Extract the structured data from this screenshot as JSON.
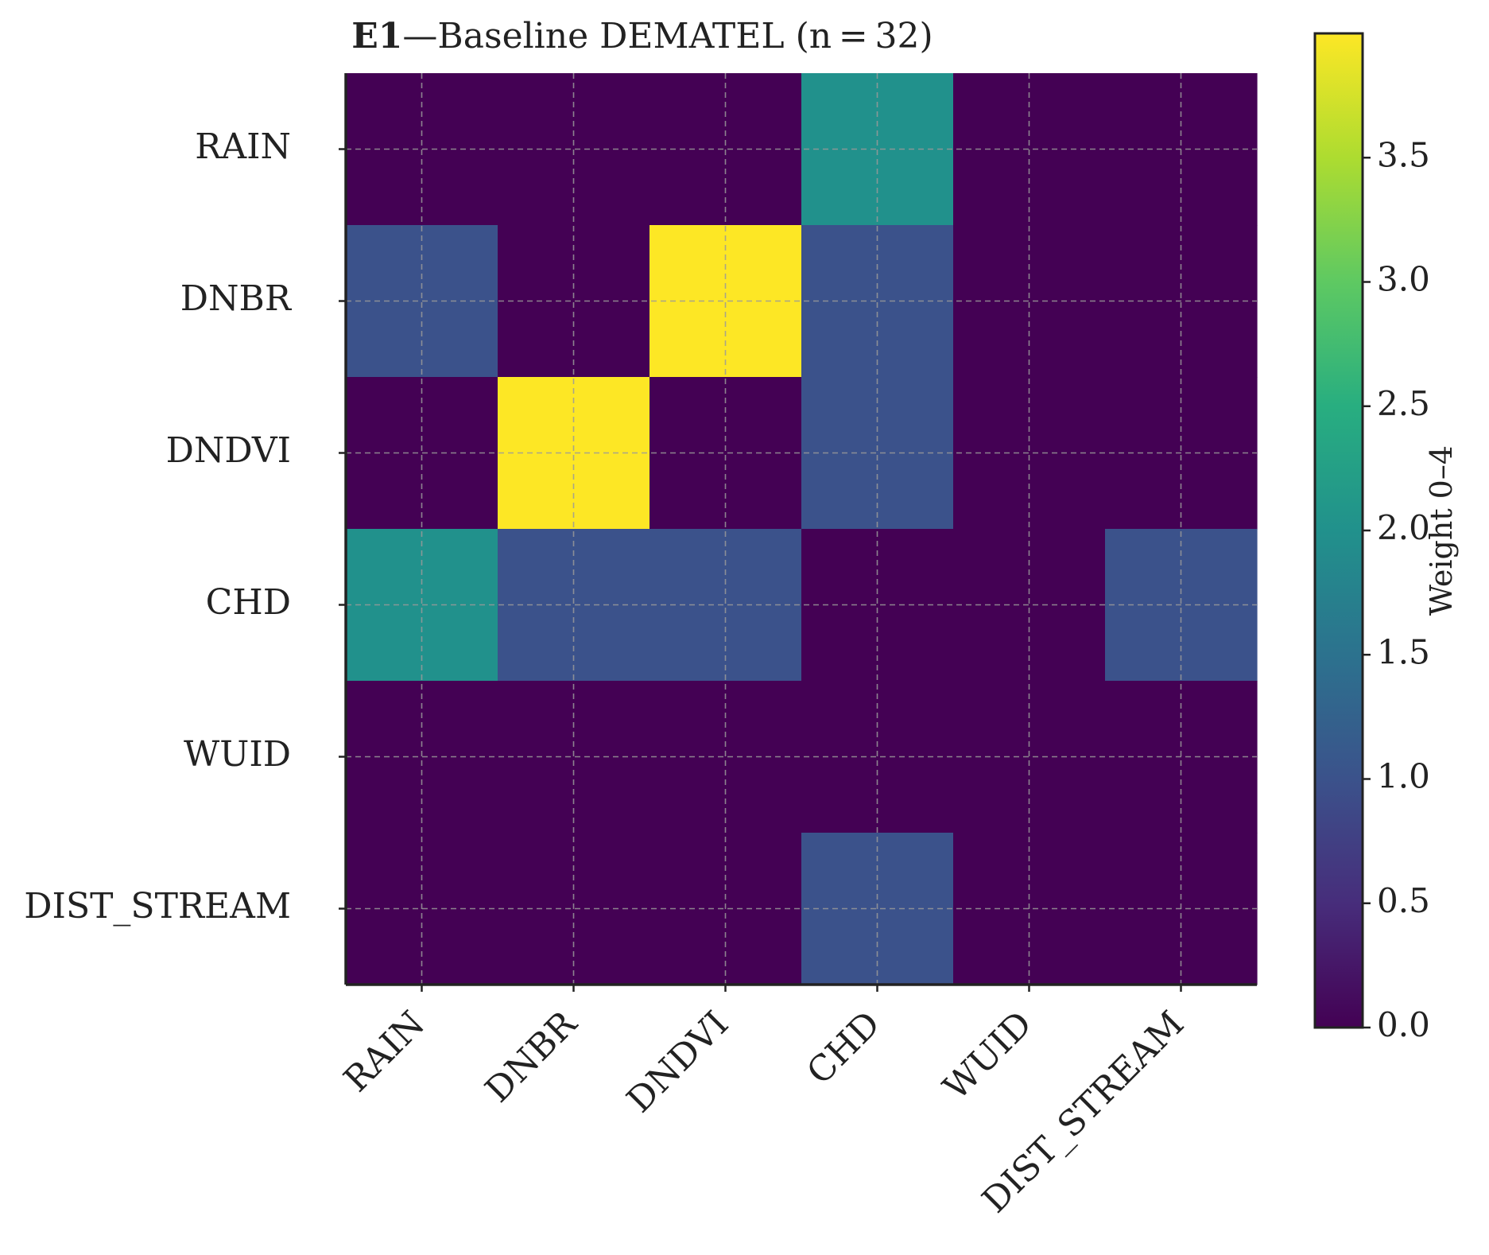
{
  "chart_data": {
    "type": "heatmap",
    "title_bold": "E1",
    "title_rest": "—Baseline DEMATEL (n = 32)",
    "rows": [
      "RAIN",
      "DNBR",
      "DNDVI",
      "CHD",
      "WUID",
      "DIST_STREAM"
    ],
    "cols": [
      "RAIN",
      "DNBR",
      "DNDVI",
      "CHD",
      "WUID",
      "DIST_STREAM"
    ],
    "values": [
      [
        0,
        0,
        0,
        2,
        0,
        0
      ],
      [
        1,
        0,
        4,
        1,
        0,
        0
      ],
      [
        0,
        4,
        0,
        1,
        0,
        0
      ],
      [
        2,
        1,
        1,
        0,
        0,
        1
      ],
      [
        0,
        0,
        0,
        0,
        0,
        0
      ],
      [
        0,
        0,
        0,
        1,
        0,
        0
      ]
    ],
    "colormap": "viridis",
    "vmin": 0,
    "vmax": 4,
    "colorbar": {
      "label": "Weight 0–4",
      "ticks": [
        "0.0",
        "0.5",
        "1.0",
        "1.5",
        "2.0",
        "2.5",
        "3.0",
        "3.5"
      ]
    },
    "grid": true
  }
}
